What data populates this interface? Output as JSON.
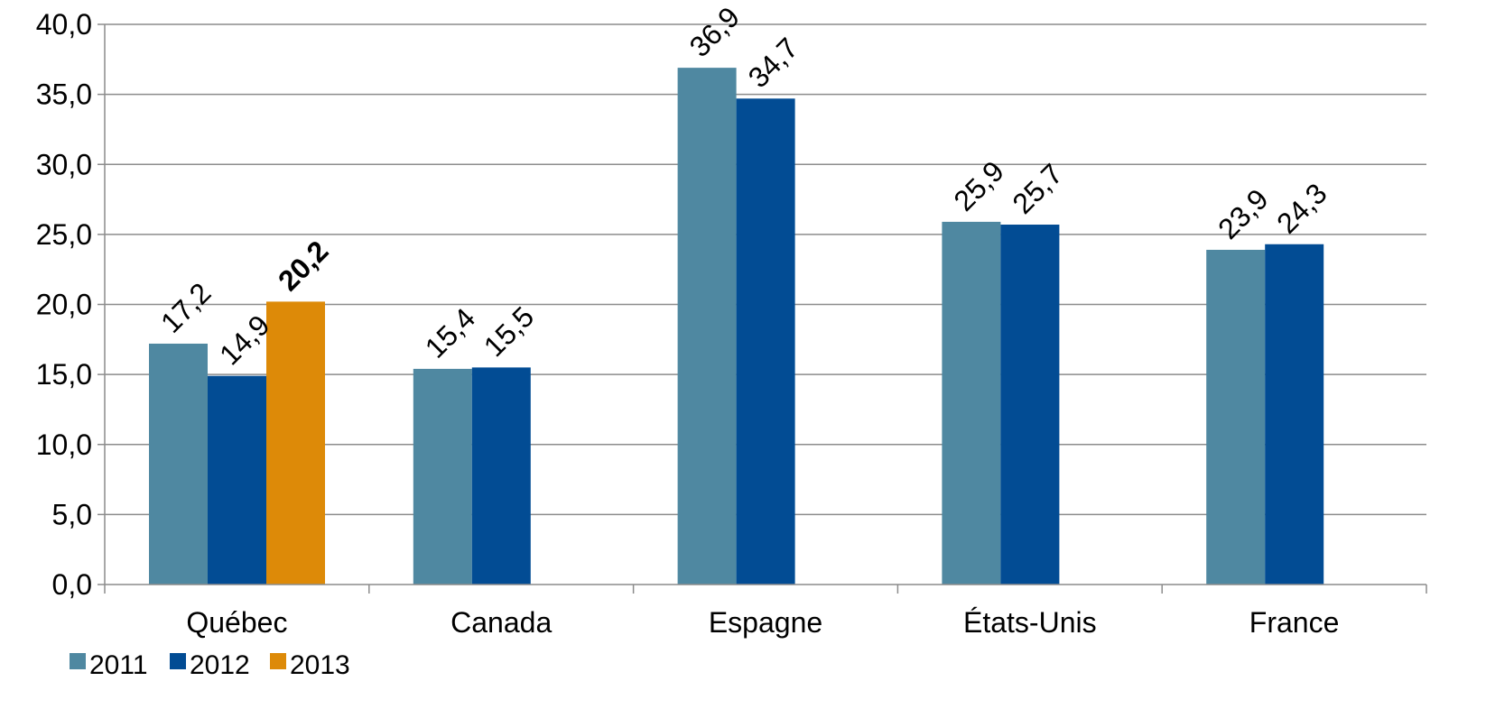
{
  "chart_data": {
    "type": "bar",
    "categories": [
      "Québec",
      "Canada",
      "Espagne",
      "États-Unis",
      "France"
    ],
    "series": [
      {
        "name": "2011",
        "color": "#4f88a1",
        "values": [
          17.2,
          15.4,
          36.9,
          25.9,
          23.9
        ]
      },
      {
        "name": "2012",
        "color": "#024c94",
        "values": [
          14.9,
          15.5,
          34.7,
          25.7,
          24.3
        ]
      },
      {
        "name": "2013",
        "color": "#dd8a08",
        "values": [
          20.2,
          null,
          null,
          null,
          null
        ]
      }
    ],
    "data_labels": [
      [
        "17,2",
        "15,4",
        "36,9",
        "25,9",
        "23,9"
      ],
      [
        "14,9",
        "15,5",
        "34,7",
        "25,7",
        "24,3"
      ],
      [
        "20,2",
        null,
        null,
        null,
        null
      ]
    ],
    "highlight_label_color": "#dd8a08",
    "ylim": [
      0,
      40
    ],
    "yticks": [
      0,
      5,
      10,
      15,
      20,
      25,
      30,
      35,
      40
    ],
    "ytick_labels": [
      "0,0",
      "5,0",
      "10,0",
      "15,0",
      "20,0",
      "25,0",
      "30,0",
      "35,0",
      "40,0"
    ],
    "grid": true,
    "legend_position": "bottom-left",
    "title": "",
    "xlabel": "",
    "ylabel": ""
  }
}
